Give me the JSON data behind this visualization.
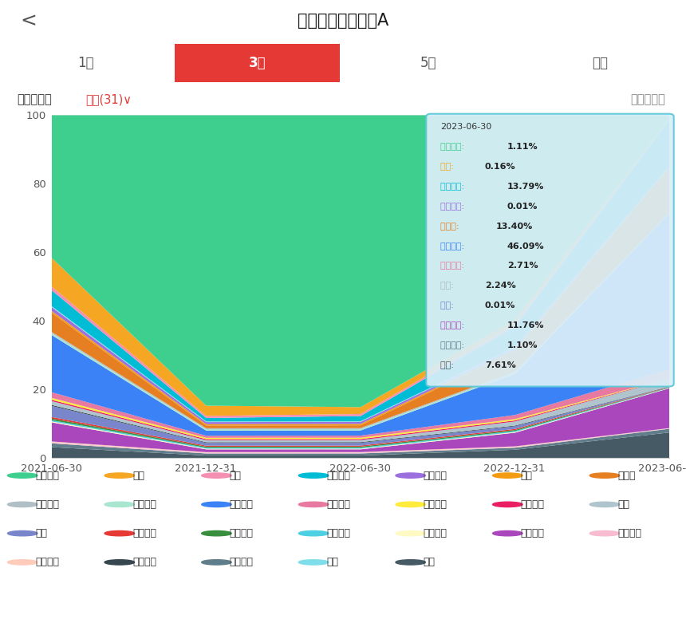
{
  "title": "博时创新经济混合A",
  "tabs": [
    "1年",
    "3年",
    "5年",
    "全部"
  ],
  "active_tab": "3年",
  "dates": [
    "2021-06-30",
    "2021-12-31",
    "2022-06-30",
    "2022-12-31",
    "2023-06-30"
  ],
  "tooltip_date": "2023-06-30",
  "tooltip_data": [
    {
      "label": "医药生物",
      "value": "1.11%",
      "color": "#3ecf8e"
    },
    {
      "label": "电子",
      "value": "0.16%",
      "color": "#f5a623"
    },
    {
      "label": "电力设备",
      "value": "13.79%",
      "color": "#00bcd4"
    },
    {
      "label": "基础化工",
      "value": "0.01%",
      "color": "#9c6fde"
    },
    {
      "label": "计算机",
      "value": "13.40%",
      "color": "#e67e22"
    },
    {
      "label": "机械设备",
      "value": "46.09%",
      "color": "#3b82f6"
    },
    {
      "label": "公用事业",
      "value": "2.71%",
      "color": "#e879a0"
    },
    {
      "label": "环保",
      "value": "2.24%",
      "color": "#aab8c2"
    },
    {
      "label": "汽车",
      "value": "0.01%",
      "color": "#7986cb"
    },
    {
      "label": "家用电器",
      "value": "11.76%",
      "color": "#ab47bc"
    },
    {
      "label": "交通运输",
      "value": "1.10%",
      "color": "#607d8b"
    },
    {
      "label": "通信",
      "value": "7.61%",
      "color": "#455a64"
    }
  ],
  "series": [
    {
      "name": "通信",
      "color": "#455a64",
      "values": [
        3.5,
        0.8,
        0.8,
        2.5,
        7.61
      ]
    },
    {
      "name": "交通运输",
      "color": "#607d8b",
      "values": [
        1.2,
        0.6,
        0.6,
        0.6,
        1.1
      ]
    },
    {
      "name": "建筑装饰",
      "color": "#f8bbd0",
      "values": [
        0.3,
        0.2,
        0.2,
        0.2,
        0.1
      ]
    },
    {
      "name": "建筑材料",
      "color": "#ffccbc",
      "values": [
        0.3,
        0.2,
        0.2,
        0.2,
        0.1
      ]
    },
    {
      "name": "家用电器",
      "color": "#ab47bc",
      "values": [
        6.0,
        0.8,
        0.8,
        4.0,
        11.76
      ]
    },
    {
      "name": "纺织服饰",
      "color": "#fff9c4",
      "values": [
        0.3,
        0.2,
        0.2,
        0.2,
        0.1
      ]
    },
    {
      "name": "农林牧渔",
      "color": "#4dd0e1",
      "values": [
        0.4,
        0.3,
        0.3,
        0.3,
        0.1
      ]
    },
    {
      "name": "国防军工",
      "color": "#388e3c",
      "values": [
        0.5,
        0.3,
        0.3,
        0.3,
        0.1
      ]
    },
    {
      "name": "非银金融",
      "color": "#e53935",
      "values": [
        0.5,
        0.3,
        0.3,
        0.3,
        0.1
      ]
    },
    {
      "name": "汽车",
      "color": "#7986cb",
      "values": [
        3.5,
        0.8,
        0.8,
        0.8,
        0.01
      ]
    },
    {
      "name": "轻工制造",
      "color": "#37474f",
      "values": [
        0.3,
        0.2,
        0.2,
        0.2,
        0.1
      ]
    },
    {
      "name": "环保",
      "color": "#b0c4ce",
      "values": [
        1.2,
        0.6,
        0.6,
        1.2,
        2.24
      ]
    },
    {
      "name": "美容护理",
      "color": "#e91e63",
      "values": [
        0.4,
        0.3,
        0.3,
        0.3,
        0.1
      ]
    },
    {
      "name": "有色金属",
      "color": "#ffeb3b",
      "values": [
        0.6,
        0.4,
        0.4,
        0.4,
        0.1
      ]
    },
    {
      "name": "公用事业",
      "color": "#e879a0",
      "values": [
        1.8,
        0.6,
        0.6,
        1.2,
        2.71
      ]
    },
    {
      "name": "机械设备",
      "color": "#3b82f6",
      "values": [
        18.0,
        1.5,
        1.5,
        12.0,
        46.09
      ]
    },
    {
      "name": "食品饮料",
      "color": "#a8e6cf",
      "values": [
        0.6,
        0.4,
        0.4,
        0.4,
        0.1
      ]
    },
    {
      "name": "商贸零售",
      "color": "#b0bec5",
      "values": [
        0.4,
        0.3,
        0.3,
        0.3,
        0.1
      ]
    },
    {
      "name": "计算机",
      "color": "#e67e22",
      "values": [
        6.0,
        0.8,
        0.8,
        6.0,
        13.4
      ]
    },
    {
      "name": "传媒",
      "color": "#f39c12",
      "values": [
        0.6,
        0.4,
        0.4,
        0.4,
        0.1
      ]
    },
    {
      "name": "基础化工",
      "color": "#9c6fde",
      "values": [
        1.2,
        0.6,
        0.6,
        0.6,
        0.01
      ]
    },
    {
      "name": "钢铁",
      "color": "#80deea",
      "values": [
        0.3,
        0.2,
        0.2,
        0.2,
        0.1
      ]
    },
    {
      "name": "电力设备",
      "color": "#00bcd4",
      "values": [
        5.0,
        1.0,
        1.5,
        6.0,
        13.79
      ]
    },
    {
      "name": "银行",
      "color": "#f48fb1",
      "values": [
        1.2,
        0.6,
        0.6,
        0.6,
        0.1
      ]
    },
    {
      "name": "电子",
      "color": "#f5a623",
      "values": [
        9.0,
        3.0,
        2.0,
        1.5,
        0.16
      ]
    },
    {
      "name": "医药生物",
      "color": "#3ecf8e",
      "values": [
        45.0,
        85.0,
        85.0,
        60.0,
        1.11
      ]
    }
  ],
  "legend_items": [
    {
      "label": "医药生物",
      "color": "#3ecf8e"
    },
    {
      "label": "电子",
      "color": "#f5a623"
    },
    {
      "label": "银行",
      "color": "#f48fb1"
    },
    {
      "label": "电力设备",
      "color": "#00bcd4"
    },
    {
      "label": "基础化工",
      "color": "#9c6fde"
    },
    {
      "label": "传媒",
      "color": "#f39c12"
    },
    {
      "label": "计算机",
      "color": "#e67e22"
    },
    {
      "label": "商贸零售",
      "color": "#b0bec5"
    },
    {
      "label": "食品饮料",
      "color": "#a8e6cf"
    },
    {
      "label": "机械设备",
      "color": "#3b82f6"
    },
    {
      "label": "公用事业",
      "color": "#e879a0"
    },
    {
      "label": "有色金属",
      "color": "#ffeb3b"
    },
    {
      "label": "美容护理",
      "color": "#e91e63"
    },
    {
      "label": "环保",
      "color": "#b0c4ce"
    },
    {
      "label": "汽车",
      "color": "#7986cb"
    },
    {
      "label": "非银金融",
      "color": "#e53935"
    },
    {
      "label": "国防军工",
      "color": "#388e3c"
    },
    {
      "label": "农林牧渔",
      "color": "#4dd0e1"
    },
    {
      "label": "纺织服饰",
      "color": "#fff9c4"
    },
    {
      "label": "家用电器",
      "color": "#ab47bc"
    },
    {
      "label": "建筑装饰",
      "color": "#f8bbd0"
    },
    {
      "label": "建筑材料",
      "color": "#ffccbc"
    },
    {
      "label": "轻工制造",
      "color": "#37474f"
    },
    {
      "label": "交通运输",
      "color": "#607d8b"
    },
    {
      "label": "钢铁",
      "color": "#80deea"
    },
    {
      "label": "通信",
      "color": "#455a64"
    }
  ],
  "ylim": [
    0,
    100
  ],
  "bg_color": "#ffffff",
  "active_tab_color": "#e53935",
  "active_tab_text": "#ffffff",
  "inactive_tab_text": "#555555"
}
